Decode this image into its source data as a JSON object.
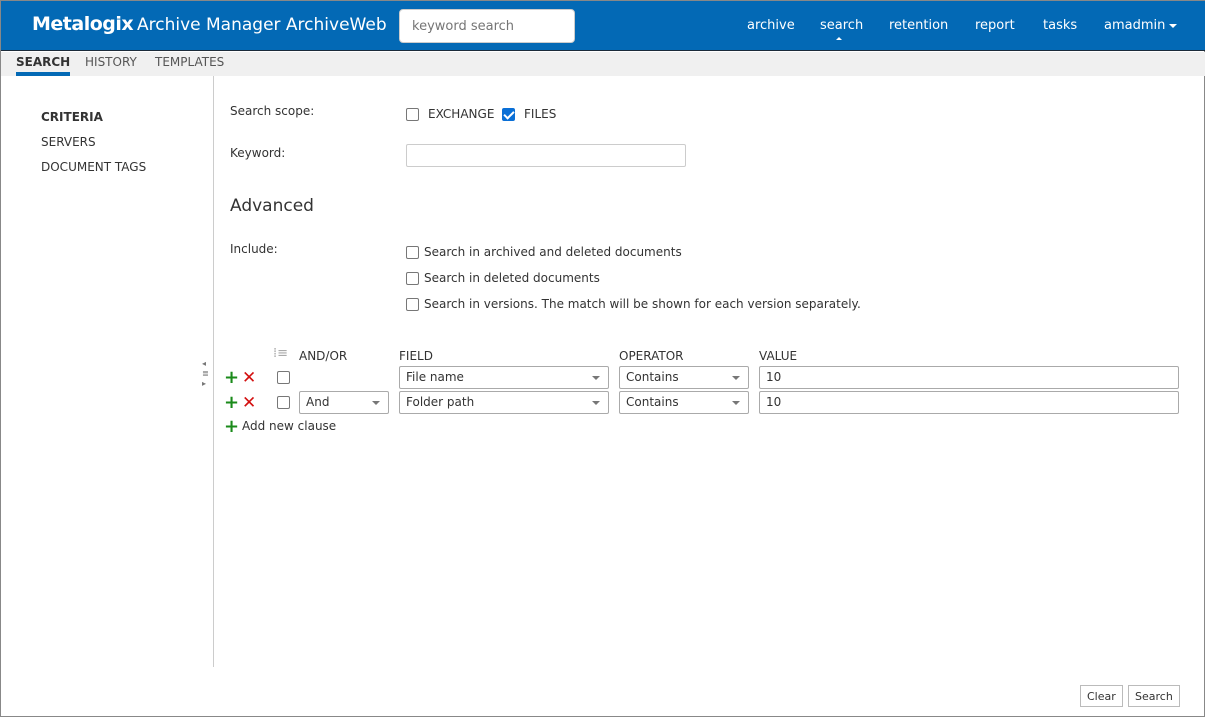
{
  "header": {
    "logo": "Metalogix",
    "title": "Archive Manager ArchiveWeb",
    "search_placeholder": "keyword search",
    "nav": [
      "archive",
      "search",
      "retention",
      "report",
      "tasks",
      "amadmin"
    ]
  },
  "subtabs": [
    "SEARCH",
    "HISTORY",
    "TEMPLATES"
  ],
  "sidebar": [
    "CRITERIA",
    "SERVERS",
    "DOCUMENT TAGS"
  ],
  "form": {
    "scope_label": "Search scope:",
    "exchange": "EXCHANGE",
    "files": "FILES",
    "exchange_checked": false,
    "files_checked": true,
    "keyword_label": "Keyword:",
    "keyword_value": "",
    "advanced": "Advanced",
    "include_label": "Include:",
    "include_options": [
      "Search in archived and deleted documents",
      "Search in deleted documents",
      "Search in versions. The match will be shown for each version separately."
    ]
  },
  "clauses": {
    "headers": [
      "AND/OR",
      "FIELD",
      "OPERATOR",
      "VALUE"
    ],
    "rows": [
      {
        "andor": "",
        "field": "File name",
        "operator": "Contains",
        "value": "10"
      },
      {
        "andor": "And",
        "field": "Folder path",
        "operator": "Contains",
        "value": "10"
      }
    ],
    "add_label": "Add new clause"
  },
  "buttons": {
    "clear": "Clear",
    "search": "Search"
  },
  "colors": {
    "brand": "#0369b5"
  }
}
